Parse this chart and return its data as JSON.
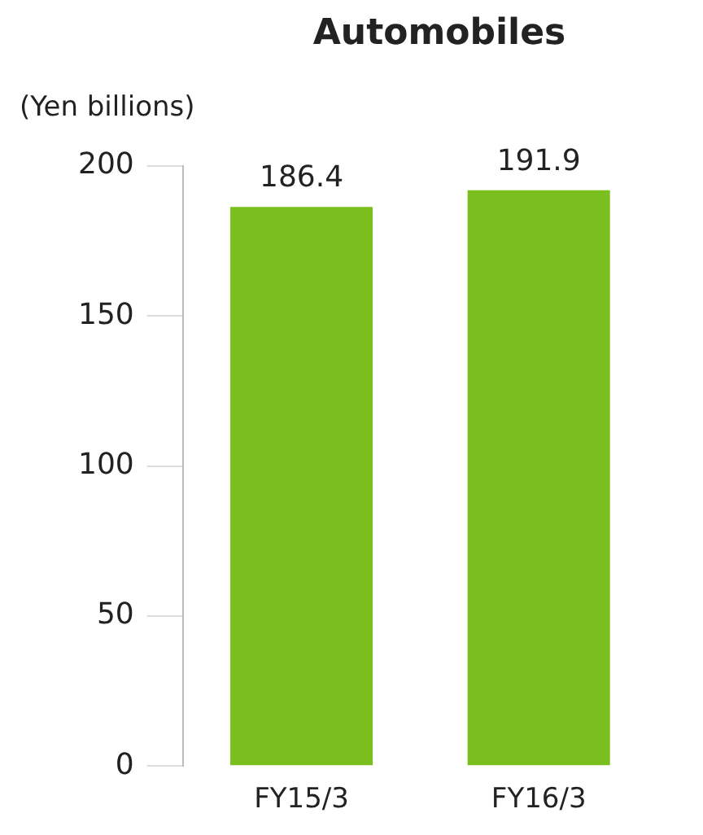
{
  "chart_data": {
    "type": "bar",
    "title": "Automobiles",
    "ylabel": "(Yen billions)",
    "categories": [
      "FY15/3",
      "FY16/3"
    ],
    "values": [
      186.4,
      191.9
    ],
    "color": "#7bbf1e",
    "ylim": [
      0,
      200
    ],
    "yticks": [
      0,
      50,
      100,
      150,
      200
    ],
    "data_labels": true
  }
}
